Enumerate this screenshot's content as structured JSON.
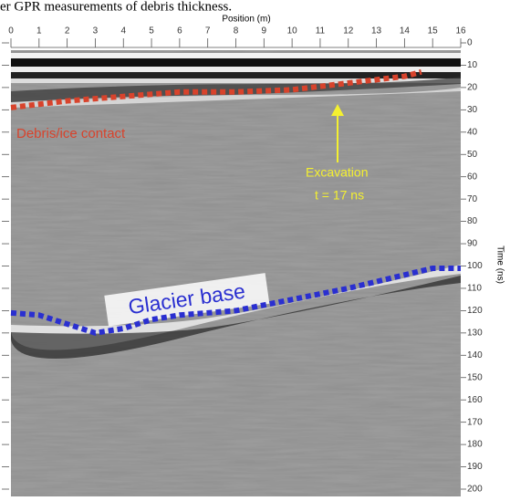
{
  "caption": "er GPR measurements of debris thickness.",
  "chart_data": {
    "type": "radargram",
    "x_label": "Position (m)",
    "y_label": "Time (ns)",
    "xlim": [
      0,
      16
    ],
    "xticks": [
      0,
      1,
      2,
      3,
      4,
      5,
      6,
      7,
      8,
      9,
      10,
      11,
      12,
      13,
      14,
      15,
      16
    ],
    "ylim": [
      0,
      200
    ],
    "yticks": [
      0,
      10,
      20,
      30,
      40,
      50,
      60,
      70,
      80,
      90,
      100,
      110,
      120,
      130,
      140,
      150,
      160,
      170,
      180,
      190,
      200
    ],
    "inverted_y": true,
    "series": [
      {
        "name": "Debris/ice contact",
        "color": "#d8432c",
        "x": [
          0,
          2,
          4,
          6,
          8,
          10,
          12,
          14,
          14.6
        ],
        "values": [
          29,
          26,
          24,
          22,
          22,
          21,
          18,
          15,
          13
        ]
      },
      {
        "name": "Glacier base",
        "color": "#2a2fd0",
        "x": [
          0,
          1,
          2,
          3,
          4,
          5,
          6,
          8,
          10,
          12,
          14,
          15,
          16
        ],
        "values": [
          121,
          122,
          126,
          130,
          128,
          124,
          122,
          120,
          115,
          110,
          104,
          101,
          101
        ]
      }
    ],
    "annotations": [
      "Excavation",
      "t = 17 ns"
    ]
  }
}
